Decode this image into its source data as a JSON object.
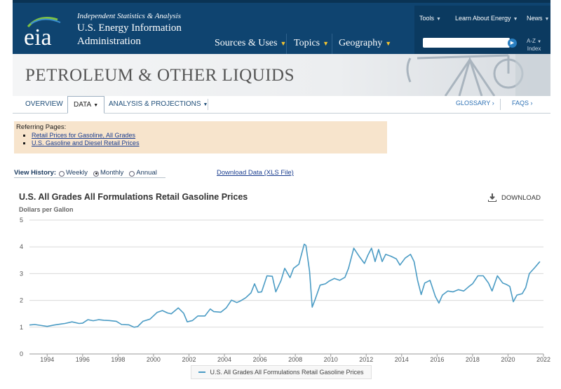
{
  "header": {
    "logo_text": "eia",
    "tagline": "Independent Statistics & Analysis",
    "agency_line1": "U.S. Energy Information",
    "agency_line2": "Administration",
    "nav": [
      {
        "label": "Sources & Uses"
      },
      {
        "label": "Topics"
      },
      {
        "label": "Geography"
      }
    ],
    "utility": [
      {
        "label": "Tools"
      },
      {
        "label": "Learn About Energy"
      },
      {
        "label": "News"
      }
    ],
    "search_placeholder": "",
    "az_line1": "A-Z",
    "az_line2": "Index"
  },
  "banner": {
    "title": "PETROLEUM & OTHER LIQUIDS"
  },
  "tabs": {
    "items": [
      {
        "label": "OVERVIEW"
      },
      {
        "label": "DATA"
      },
      {
        "label": "ANALYSIS & PROJECTIONS"
      }
    ],
    "glossary": "GLOSSARY ›",
    "faqs": "FAQS ›"
  },
  "referring": {
    "heading": "Referring Pages:",
    "links": [
      "Retail Prices for Gasoline, All Grades",
      "U.S. Gasoline and Diesel Retail Prices"
    ]
  },
  "view_history": {
    "label": "View History:",
    "options": [
      "Weekly",
      "Monthly",
      "Annual"
    ],
    "selected": "Monthly"
  },
  "download_data_link": "Download Data (XLS File)",
  "download_button": "DOWNLOAD",
  "colors": {
    "header_bg": "#0f4470",
    "series": "#4a9bc4",
    "accent": "#f4c430"
  },
  "chart_data": {
    "type": "line",
    "title": "U.S. All Grades All Formulations Retail Gasoline Prices",
    "ylabel": "Dollars per Gallon",
    "xlabel": "",
    "ylim": [
      0,
      5
    ],
    "xlim": [
      1993,
      2022
    ],
    "yticks": [
      "0",
      "1",
      "2",
      "3",
      "4",
      "5"
    ],
    "xticks": [
      "1994",
      "1996",
      "1998",
      "2000",
      "2002",
      "2004",
      "2006",
      "2008",
      "2010",
      "2012",
      "2014",
      "2016",
      "2018",
      "2020",
      "2022"
    ],
    "grid": true,
    "legend": "bottom",
    "series": [
      {
        "name": "U.S. All Grades All Formulations Retail Gasoline Prices",
        "x": [
          1993.0,
          1993.3,
          1993.7,
          1994.0,
          1994.4,
          1994.8,
          1995.0,
          1995.4,
          1995.8,
          1996.0,
          1996.3,
          1996.6,
          1996.9,
          1997.2,
          1997.5,
          1997.9,
          1998.2,
          1998.6,
          1998.9,
          1999.1,
          1999.4,
          1999.8,
          2000.2,
          2000.5,
          2000.8,
          2001.0,
          2001.4,
          2001.7,
          2001.9,
          2002.2,
          2002.5,
          2002.9,
          2003.2,
          2003.4,
          2003.8,
          2004.1,
          2004.4,
          2004.7,
          2004.9,
          2005.2,
          2005.5,
          2005.7,
          2005.9,
          2006.1,
          2006.4,
          2006.7,
          2006.9,
          2007.2,
          2007.4,
          2007.7,
          2007.9,
          2008.2,
          2008.5,
          2008.6,
          2008.8,
          2008.95,
          2009.1,
          2009.4,
          2009.7,
          2009.9,
          2010.2,
          2010.5,
          2010.8,
          2011.0,
          2011.3,
          2011.6,
          2011.9,
          2012.1,
          2012.3,
          2012.5,
          2012.7,
          2012.9,
          2013.1,
          2013.4,
          2013.7,
          2013.9,
          2014.2,
          2014.5,
          2014.7,
          2014.9,
          2015.1,
          2015.3,
          2015.6,
          2015.9,
          2016.1,
          2016.3,
          2016.6,
          2016.9,
          2017.2,
          2017.5,
          2017.8,
          2018.0,
          2018.3,
          2018.6,
          2018.9,
          2019.1,
          2019.4,
          2019.7,
          2019.9,
          2020.1,
          2020.3,
          2020.5,
          2020.8,
          2021.0,
          2021.2,
          2021.5,
          2021.8
        ],
        "y": [
          1.08,
          1.1,
          1.06,
          1.03,
          1.08,
          1.12,
          1.14,
          1.2,
          1.14,
          1.15,
          1.28,
          1.24,
          1.28,
          1.26,
          1.25,
          1.22,
          1.1,
          1.09,
          1.0,
          1.02,
          1.22,
          1.3,
          1.55,
          1.62,
          1.53,
          1.5,
          1.72,
          1.52,
          1.2,
          1.25,
          1.42,
          1.42,
          1.68,
          1.58,
          1.56,
          1.72,
          2.01,
          1.92,
          1.98,
          2.1,
          2.28,
          2.62,
          2.3,
          2.32,
          2.92,
          2.9,
          2.32,
          2.75,
          3.2,
          2.85,
          3.2,
          3.35,
          4.1,
          4.05,
          3.1,
          1.75,
          2.0,
          2.57,
          2.62,
          2.72,
          2.82,
          2.75,
          2.86,
          3.2,
          3.95,
          3.65,
          3.38,
          3.7,
          3.95,
          3.45,
          3.9,
          3.45,
          3.72,
          3.65,
          3.55,
          3.32,
          3.58,
          3.72,
          3.45,
          2.75,
          2.22,
          2.65,
          2.75,
          2.15,
          1.9,
          2.2,
          2.35,
          2.32,
          2.4,
          2.35,
          2.52,
          2.62,
          2.92,
          2.92,
          2.65,
          2.35,
          2.92,
          2.65,
          2.6,
          2.52,
          1.95,
          2.2,
          2.25,
          2.48,
          3.0,
          3.22,
          3.45
        ]
      }
    ]
  }
}
